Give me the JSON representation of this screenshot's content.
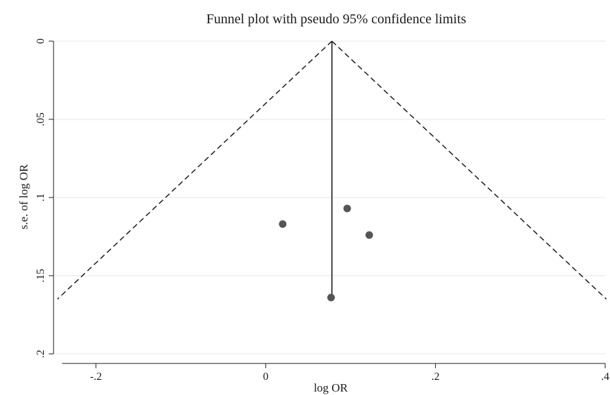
{
  "chart_data": {
    "type": "scatter",
    "title": "Funnel plot with pseudo 95% confidence limits",
    "xlabel": "log OR",
    "ylabel": "s.e. of log OR",
    "xlim": [
      -0.25,
      0.4
    ],
    "ylim": [
      0,
      0.2
    ],
    "y_reversed": true,
    "x_ticks": [
      -0.2,
      0,
      0.2,
      0.4
    ],
    "x_tick_labels": [
      "-.2",
      "0",
      ".2",
      ".4"
    ],
    "y_ticks": [
      0,
      0.05,
      0.1,
      0.15,
      0.2
    ],
    "y_tick_labels": [
      "0",
      ".05",
      ".1",
      ".15",
      ".2"
    ],
    "grid": "horizontal",
    "pooled_estimate": 0.078,
    "max_se": 0.165,
    "points": [
      {
        "x": 0.02,
        "y": 0.117
      },
      {
        "x": 0.096,
        "y": 0.107
      },
      {
        "x": 0.122,
        "y": 0.124
      },
      {
        "x": 0.077,
        "y": 0.164
      }
    ],
    "colors": {
      "points": "#555555",
      "lines": "#1a1a1a",
      "grid": "#e6e6e6"
    }
  }
}
